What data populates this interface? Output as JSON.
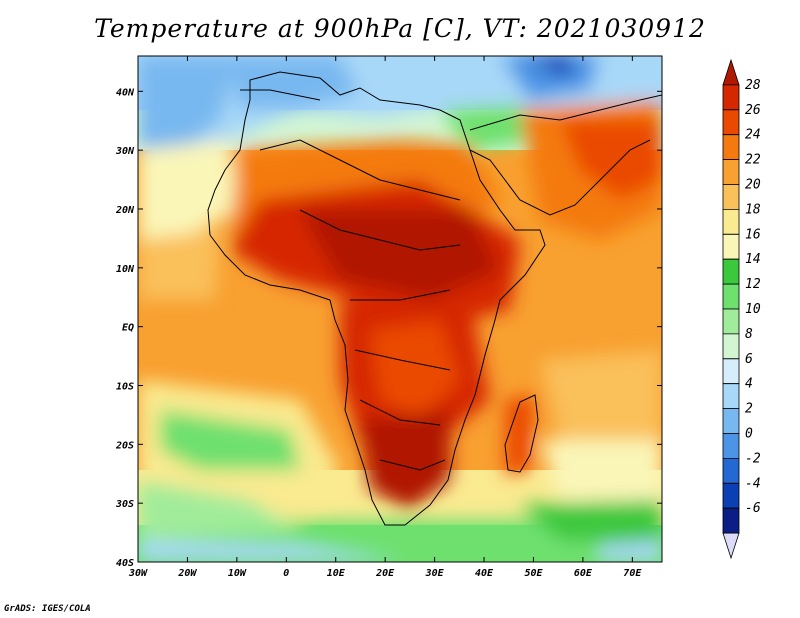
{
  "title": "Temperature at 900hPa [C], VT: 2021030912",
  "footer": "GrADS: IGES/COLA",
  "map": {
    "lon_range": [
      -30,
      76
    ],
    "lat_range": [
      -40,
      46
    ],
    "lon_ticks": [
      "30W",
      "20W",
      "10W",
      "0",
      "10E",
      "20E",
      "30E",
      "40E",
      "50E",
      "60E",
      "70E"
    ],
    "lat_ticks": [
      "40N",
      "30N",
      "20N",
      "10N",
      "EQ",
      "10S",
      "20S",
      "30S",
      "40S"
    ]
  },
  "colorbar": {
    "labels": [
      "28",
      "26",
      "24",
      "22",
      "20",
      "18",
      "16",
      "14",
      "12",
      "10",
      "8",
      "6",
      "4",
      "2",
      "0",
      "-2",
      "-4",
      "-6"
    ],
    "colors": [
      "#b01800",
      "#d62800",
      "#ea4a00",
      "#f47a10",
      "#f8a030",
      "#fac05a",
      "#faea90",
      "#faf6b8",
      "#3cc83c",
      "#6ee06e",
      "#a0ec9a",
      "#d2f6d2",
      "#d6eefc",
      "#a8d8f8",
      "#78b8f0",
      "#4c94e6",
      "#2468d2",
      "#0a40b4",
      "#0a1e86",
      "#dcdcf8"
    ]
  }
}
